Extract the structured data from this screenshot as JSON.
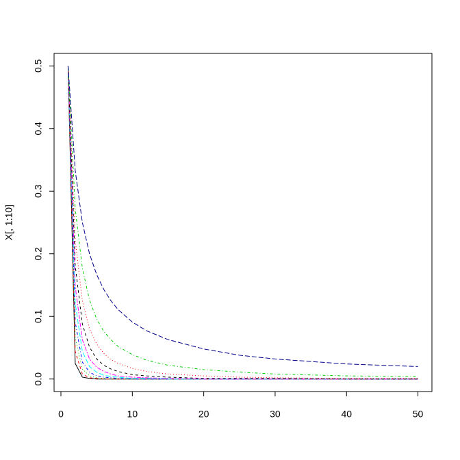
{
  "chart_data": {
    "type": "line",
    "y_label": "X[, 1:10]",
    "x": [
      1,
      2,
      3,
      4,
      5,
      6,
      7,
      8,
      10,
      12,
      15,
      20,
      25,
      30,
      40,
      50
    ],
    "xlim": [
      -0.96,
      51.96
    ],
    "ylim": [
      -0.02,
      0.52
    ],
    "xticks": [
      0,
      10,
      20,
      30,
      40,
      50
    ],
    "yticks": [
      {
        "value": 0,
        "label": "0.0"
      },
      0.1,
      0.2,
      0.3,
      0.4,
      0.5
    ],
    "grid": false,
    "series": [
      {
        "color": "#000000",
        "linestyle": "solid",
        "values": [
          0.5,
          0.025,
          0.003,
          0.001,
          0,
          0,
          0,
          0,
          0,
          0,
          0,
          0,
          0,
          0,
          0,
          0
        ]
      },
      {
        "color": "#ff0000",
        "linestyle": "dashed",
        "values": [
          0.5,
          0.044,
          0.008,
          0.002,
          0.001,
          0,
          0,
          0,
          0,
          0,
          0,
          0,
          0,
          0,
          0,
          0
        ]
      },
      {
        "color": "#00cd00",
        "linestyle": "dotted",
        "values": [
          0.5,
          0.066,
          0.016,
          0.005,
          0.002,
          0.001,
          0,
          0,
          0,
          0,
          0,
          0,
          0,
          0,
          0,
          0
        ]
      },
      {
        "color": "#0000ff",
        "linestyle": "dotdash",
        "values": [
          0.5,
          0.091,
          0.027,
          0.011,
          0.005,
          0.003,
          0.002,
          0.001,
          0,
          0,
          0,
          0,
          0,
          0,
          0,
          0
        ]
      },
      {
        "color": "#00ffff",
        "linestyle": "longdash",
        "values": [
          0.5,
          0.121,
          0.044,
          0.02,
          0.011,
          0.006,
          0.004,
          0.003,
          0.001,
          0.001,
          0,
          0,
          0,
          0,
          0,
          0
        ]
      },
      {
        "color": "#ff00ff",
        "linestyle": "twodash",
        "values": [
          0.5,
          0.148,
          0.063,
          0.032,
          0.019,
          0.012,
          0.008,
          0.005,
          0.003,
          0.002,
          0.001,
          0,
          0,
          0,
          0,
          0
        ]
      },
      {
        "color": "#000000",
        "linestyle": "dashed",
        "values": [
          0.5,
          0.181,
          0.088,
          0.051,
          0.032,
          0.022,
          0.016,
          0.012,
          0.007,
          0.005,
          0.003,
          0.001,
          0.001,
          0.001,
          0,
          0
        ]
      },
      {
        "color": "#ff0000",
        "linestyle": "dotted",
        "values": [
          0.5,
          0.222,
          0.125,
          0.08,
          0.056,
          0.041,
          0.031,
          0.025,
          0.017,
          0.012,
          0.008,
          0.005,
          0.003,
          0.002,
          0.001,
          0.001
        ]
      },
      {
        "color": "#00cd00",
        "linestyle": "dotdash",
        "values": [
          0.5,
          0.272,
          0.177,
          0.126,
          0.096,
          0.076,
          0.063,
          0.052,
          0.039,
          0.03,
          0.022,
          0.015,
          0.011,
          0.008,
          0.005,
          0.004
        ]
      },
      {
        "color": "#00008b",
        "linestyle": "longdash",
        "values": [
          0.5,
          0.333,
          0.25,
          0.2,
          0.167,
          0.143,
          0.125,
          0.111,
          0.091,
          0.077,
          0.063,
          0.048,
          0.038,
          0.032,
          0.024,
          0.02
        ]
      }
    ]
  }
}
